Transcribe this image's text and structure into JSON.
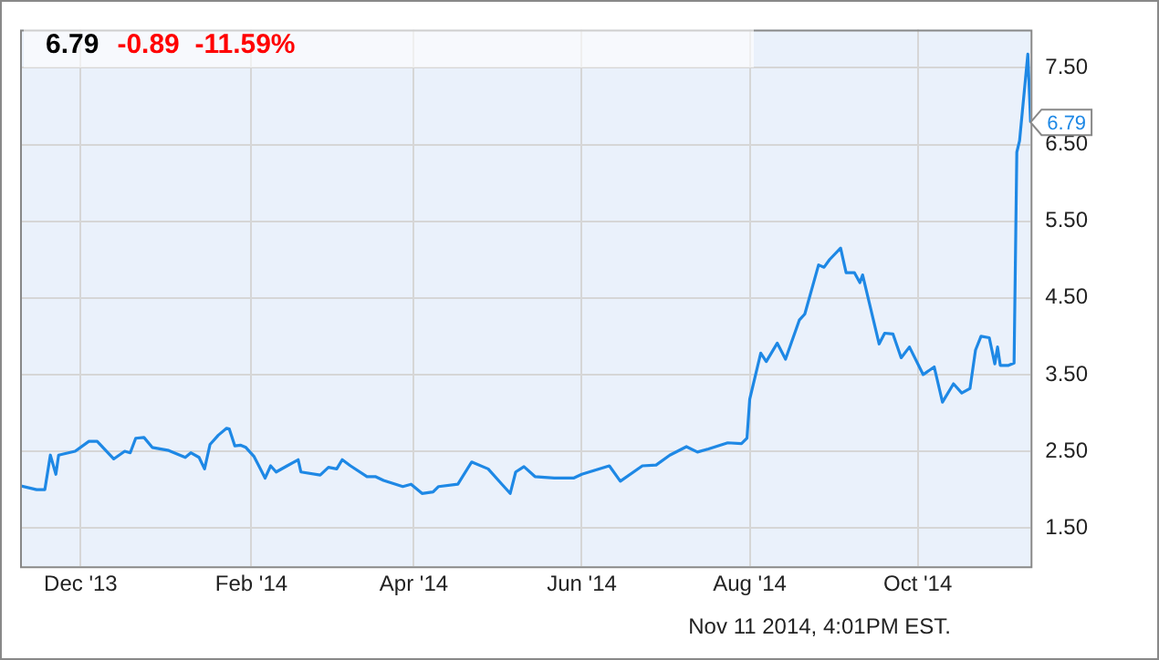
{
  "chart_data": {
    "type": "line",
    "title": "6.79",
    "subtitle": "-0.89  -11.59%",
    "annotations": [
      {
        "text": "6.79",
        "x": "2014-11-11",
        "y": 6.79
      },
      "Nov 11 2014, 4:01PM EST."
    ],
    "x": [
      "2013-11-09",
      "2013-11-15",
      "2013-11-18",
      "2013-11-20",
      "2013-11-22",
      "2013-11-23",
      "2013-11-29",
      "2013-12-04",
      "2013-12-07",
      "2013-12-13",
      "2013-12-17",
      "2013-12-19",
      "2013-12-21",
      "2013-12-24",
      "2013-12-27",
      "2014-01-02",
      "2014-01-08",
      "2014-01-10",
      "2014-01-13",
      "2014-01-15",
      "2014-01-17",
      "2014-01-20",
      "2014-01-23",
      "2014-01-24",
      "2014-01-26",
      "2014-01-28",
      "2014-01-30",
      "2014-02-02",
      "2014-02-06",
      "2014-02-08",
      "2014-02-10",
      "2014-02-14",
      "2014-02-18",
      "2014-02-19",
      "2014-02-26",
      "2014-03-01",
      "2014-03-04",
      "2014-03-06",
      "2014-03-09",
      "2014-03-15",
      "2014-03-18",
      "2014-03-21",
      "2014-03-28",
      "2014-03-31",
      "2014-04-04",
      "2014-04-08",
      "2014-04-10",
      "2014-04-17",
      "2014-04-22",
      "2014-04-28",
      "2014-05-03",
      "2014-05-06",
      "2014-05-08",
      "2014-05-11",
      "2014-05-15",
      "2014-05-22",
      "2014-05-29",
      "2014-06-01",
      "2014-06-11",
      "2014-06-15",
      "2014-06-23",
      "2014-06-28",
      "2014-07-03",
      "2014-07-09",
      "2014-07-13",
      "2014-07-17",
      "2014-07-24",
      "2014-07-29",
      "2014-07-31",
      "2014-08-01",
      "2014-08-05",
      "2014-08-07",
      "2014-08-11",
      "2014-08-14",
      "2014-08-19",
      "2014-08-21",
      "2014-08-26",
      "2014-08-28",
      "2014-08-30",
      "2014-09-03",
      "2014-09-05",
      "2014-09-08",
      "2014-09-10",
      "2014-09-11",
      "2014-09-17",
      "2014-09-19",
      "2014-09-22",
      "2014-09-25",
      "2014-09-28",
      "2014-10-03",
      "2014-10-07",
      "2014-10-10",
      "2014-10-14",
      "2014-10-17",
      "2014-10-20",
      "2014-10-22",
      "2014-10-24",
      "2014-10-27",
      "2014-10-29",
      "2014-10-30",
      "2014-10-31",
      "2014-11-03",
      "2014-11-05",
      "2014-11-06",
      "2014-11-07",
      "2014-11-10",
      "2014-11-11"
    ],
    "series": [
      {
        "color": "#1e88e5",
        "values": [
          2.05,
          2.0,
          2.0,
          2.45,
          2.2,
          2.45,
          2.5,
          2.63,
          2.63,
          2.4,
          2.5,
          2.48,
          2.67,
          2.68,
          2.55,
          2.51,
          2.42,
          2.48,
          2.42,
          2.27,
          2.59,
          2.71,
          2.8,
          2.79,
          2.57,
          2.58,
          2.55,
          2.43,
          2.15,
          2.31,
          2.23,
          2.31,
          2.39,
          2.23,
          2.19,
          2.29,
          2.27,
          2.39,
          2.31,
          2.17,
          2.17,
          2.12,
          2.04,
          2.07,
          1.95,
          1.97,
          2.04,
          2.07,
          2.36,
          2.27,
          2.07,
          1.95,
          2.23,
          2.3,
          2.17,
          2.15,
          2.15,
          2.2,
          2.31,
          2.11,
          2.31,
          2.32,
          2.45,
          2.56,
          2.49,
          2.53,
          2.61,
          2.6,
          2.67,
          3.18,
          3.78,
          3.67,
          3.91,
          3.7,
          4.21,
          4.29,
          4.93,
          4.9,
          5.0,
          5.15,
          4.83,
          4.83,
          4.7,
          4.8,
          3.9,
          4.04,
          4.03,
          3.72,
          3.86,
          3.5,
          3.6,
          3.14,
          3.38,
          3.26,
          3.32,
          3.82,
          4.0,
          3.98,
          3.64,
          3.86,
          3.62,
          3.62,
          3.65,
          6.4,
          6.55,
          7.68,
          6.79
        ]
      }
    ],
    "xlim": [
      "2013-11-09",
      "2014-11-11"
    ],
    "xticks": [
      {
        "value": "2013-12-01",
        "label": "Dec '13"
      },
      {
        "value": "2014-02-01",
        "label": "Feb '14"
      },
      {
        "value": "2014-04-01",
        "label": "Apr '14"
      },
      {
        "value": "2014-06-01",
        "label": "Jun '14"
      },
      {
        "value": "2014-08-01",
        "label": "Aug '14"
      },
      {
        "value": "2014-10-01",
        "label": "Oct '14"
      }
    ],
    "ylim": [
      1.0,
      8.0
    ],
    "yticks": [
      {
        "value": 1.5,
        "label": "1.50"
      },
      {
        "value": 2.5,
        "label": "2.50"
      },
      {
        "value": 3.5,
        "label": "3.50"
      },
      {
        "value": 4.5,
        "label": "4.50"
      },
      {
        "value": 5.5,
        "label": "5.50"
      },
      {
        "value": 6.5,
        "label": "6.50"
      },
      {
        "value": 7.5,
        "label": "7.50"
      }
    ],
    "grid": true,
    "legend": false,
    "marker": "none",
    "line_style": "solid"
  }
}
